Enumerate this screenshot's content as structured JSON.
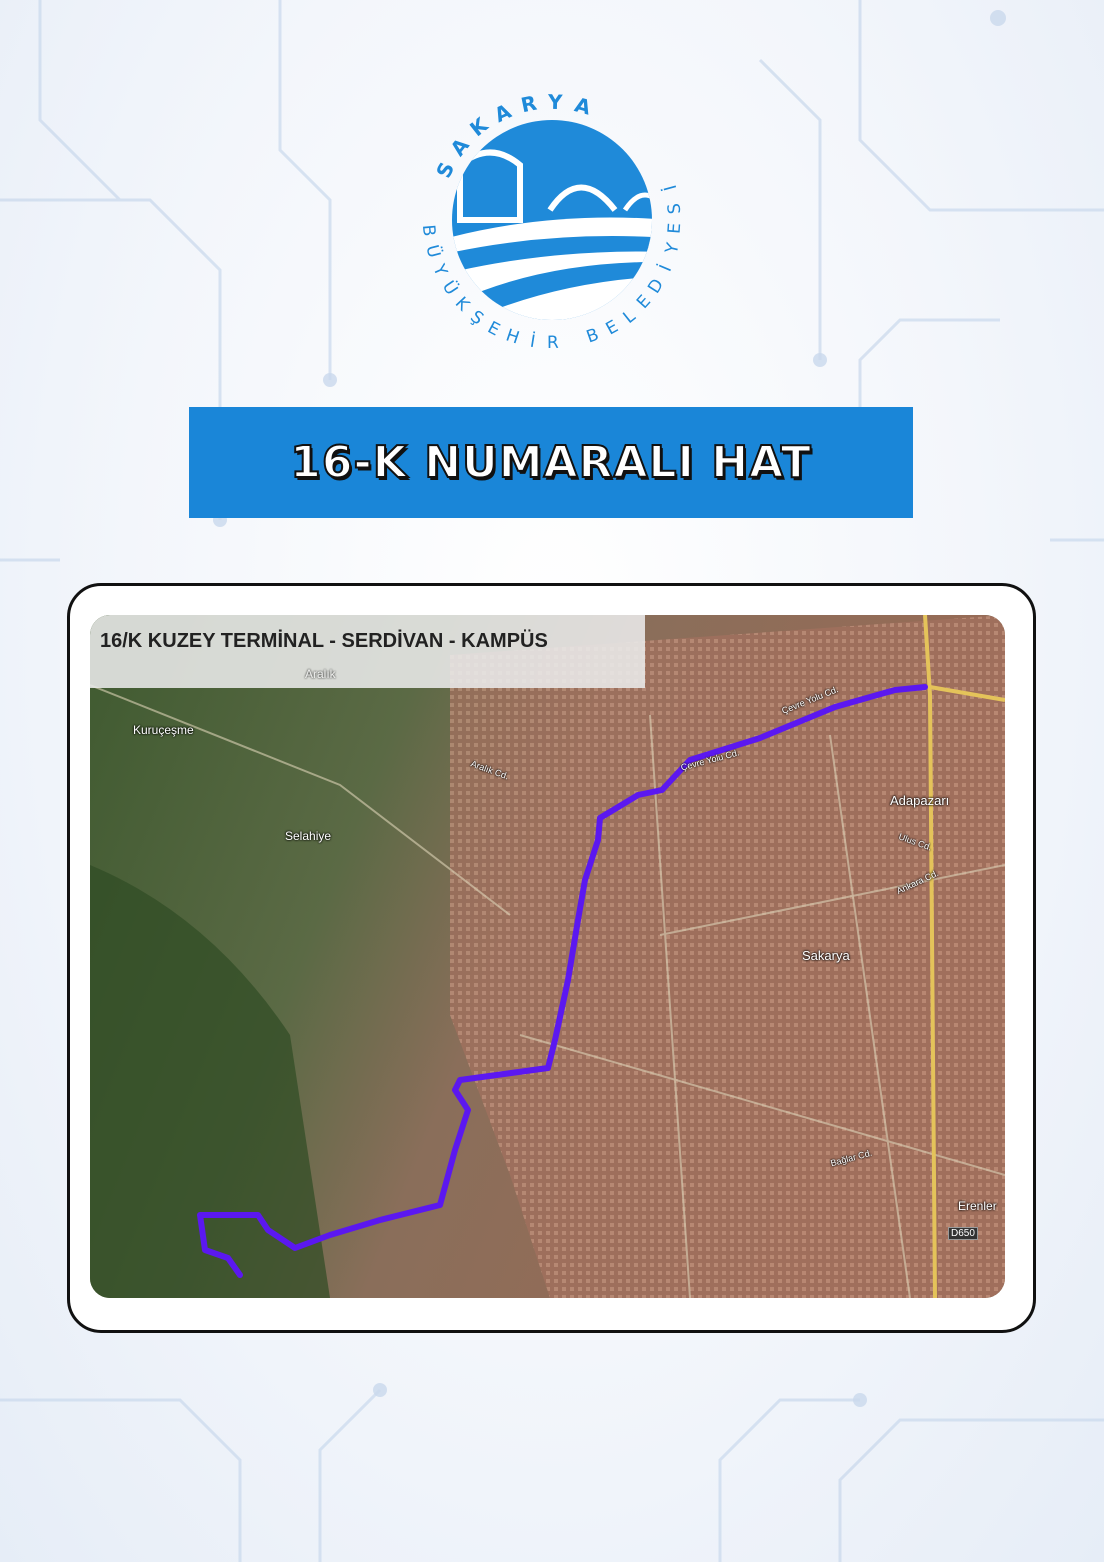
{
  "logo": {
    "top_text": "SAKARYA",
    "bottom_text": "BÜYÜKŞEHİR BELEDİYESİ",
    "color": "#1f8ad9"
  },
  "banner": {
    "title": "16-K NUMARALI HAT",
    "color": "#1a86d8"
  },
  "map": {
    "title": "16/K KUZEY TERMİNAL - SERDİVAN - KAMPÜS",
    "route_color": "#5b18f0",
    "places": [
      "Aralık",
      "Kuruçeşme",
      "Selahiye",
      "Adapazarı",
      "Sakarya",
      "Erenler"
    ],
    "streets": [
      "Çevre Yolu Cd.",
      "Çevre Yolu Cd.",
      "Aralık Cd.",
      "Ulus Cd.",
      "Ankara Cd.",
      "Bağlar Cd."
    ],
    "road_badge": "D650"
  }
}
